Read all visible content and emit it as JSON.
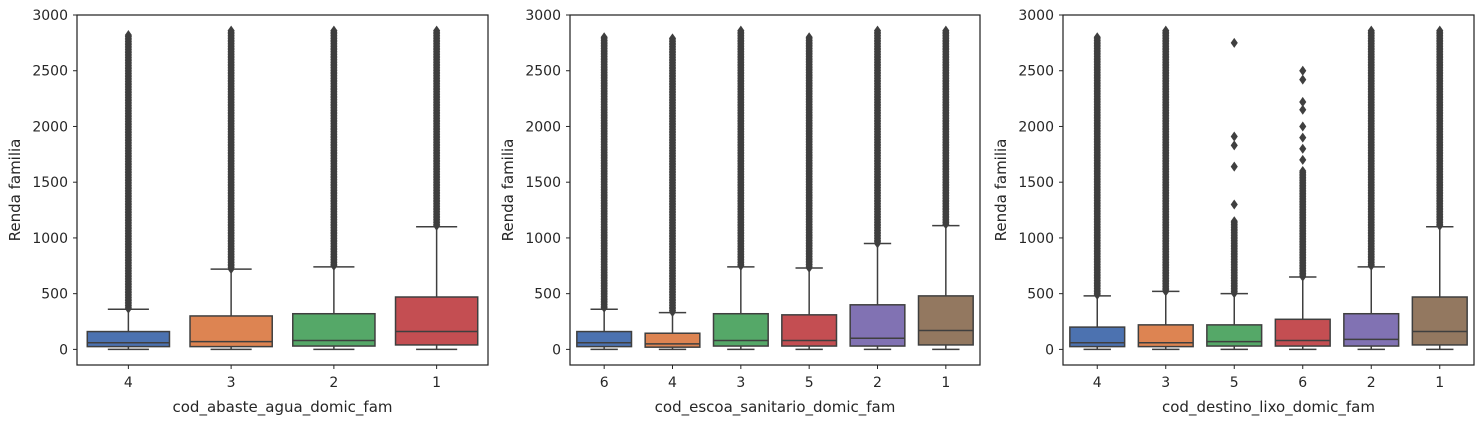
{
  "chart_data": [
    {
      "type": "box",
      "xlabel": "cod_abaste_agua_domic_fam",
      "ylabel": "Renda familia",
      "ylim": [
        -140,
        3000
      ],
      "yticks": [
        0,
        500,
        1000,
        1500,
        2000,
        2500,
        3000
      ],
      "grid": false,
      "categories": [
        "4",
        "3",
        "2",
        "1"
      ],
      "boxes": [
        {
          "label": "4",
          "color": "#4c72b0",
          "min": 0,
          "q1": 25,
          "median": 60,
          "q3": 160,
          "max": 360,
          "outlier_range": [
            360,
            2820
          ]
        },
        {
          "label": "3",
          "color": "#dd8452",
          "min": 0,
          "q1": 25,
          "median": 70,
          "q3": 300,
          "max": 720,
          "outlier_range": [
            720,
            2860
          ]
        },
        {
          "label": "2",
          "color": "#55a868",
          "min": 0,
          "q1": 30,
          "median": 80,
          "q3": 320,
          "max": 740,
          "outlier_range": [
            740,
            2860
          ]
        },
        {
          "label": "1",
          "color": "#c44e52",
          "min": 0,
          "q1": 40,
          "median": 160,
          "q3": 470,
          "max": 1100,
          "outlier_range": [
            1100,
            2860
          ]
        }
      ]
    },
    {
      "type": "box",
      "xlabel": "cod_escoa_sanitario_domic_fam",
      "ylabel": "Renda familia",
      "ylim": [
        -140,
        3000
      ],
      "yticks": [
        0,
        500,
        1000,
        1500,
        2000,
        2500,
        3000
      ],
      "grid": false,
      "categories": [
        "6",
        "4",
        "3",
        "5",
        "2",
        "1"
      ],
      "boxes": [
        {
          "label": "6",
          "color": "#4c72b0",
          "min": 0,
          "q1": 25,
          "median": 60,
          "q3": 160,
          "max": 360,
          "outlier_range": [
            360,
            2800
          ]
        },
        {
          "label": "4",
          "color": "#dd8452",
          "min": 0,
          "q1": 20,
          "median": 50,
          "q3": 145,
          "max": 330,
          "outlier_range": [
            330,
            2790
          ]
        },
        {
          "label": "3",
          "color": "#55a868",
          "min": 0,
          "q1": 30,
          "median": 80,
          "q3": 320,
          "max": 740,
          "outlier_range": [
            740,
            2860
          ]
        },
        {
          "label": "5",
          "color": "#c44e52",
          "min": 0,
          "q1": 30,
          "median": 80,
          "q3": 310,
          "max": 730,
          "outlier_range": [
            730,
            2800
          ]
        },
        {
          "label": "2",
          "color": "#8172b3",
          "min": 0,
          "q1": 30,
          "median": 100,
          "q3": 400,
          "max": 950,
          "outlier_range": [
            950,
            2860
          ]
        },
        {
          "label": "1",
          "color": "#937860",
          "min": 0,
          "q1": 40,
          "median": 170,
          "q3": 480,
          "max": 1110,
          "outlier_range": [
            1110,
            2860
          ]
        }
      ]
    },
    {
      "type": "box",
      "xlabel": "cod_destino_lixo_domic_fam",
      "ylabel": "Renda familia",
      "ylim": [
        -140,
        3000
      ],
      "yticks": [
        0,
        500,
        1000,
        1500,
        2000,
        2500,
        3000
      ],
      "grid": false,
      "categories": [
        "4",
        "3",
        "5",
        "6",
        "2",
        "1"
      ],
      "boxes": [
        {
          "label": "4",
          "color": "#4c72b0",
          "min": 0,
          "q1": 25,
          "median": 60,
          "q3": 200,
          "max": 480,
          "outlier_range": [
            480,
            2800
          ]
        },
        {
          "label": "3",
          "color": "#dd8452",
          "min": 0,
          "q1": 25,
          "median": 60,
          "q3": 220,
          "max": 520,
          "outlier_range": [
            520,
            2860
          ]
        },
        {
          "label": "5",
          "color": "#55a868",
          "min": 0,
          "q1": 30,
          "median": 70,
          "q3": 220,
          "max": 500,
          "outlier_range": [
            500,
            1150
          ],
          "extra_outliers": [
            1300,
            1640,
            1830,
            1910,
            2750
          ]
        },
        {
          "label": "6",
          "color": "#c44e52",
          "min": 0,
          "q1": 30,
          "median": 80,
          "q3": 270,
          "max": 650,
          "outlier_range": [
            650,
            1600
          ],
          "extra_outliers": [
            1700,
            1800,
            1900,
            2000,
            2150,
            2220,
            2420,
            2500
          ]
        },
        {
          "label": "2",
          "color": "#8172b3",
          "min": 0,
          "q1": 30,
          "median": 90,
          "q3": 320,
          "max": 740,
          "outlier_range": [
            740,
            2860
          ]
        },
        {
          "label": "1",
          "color": "#937860",
          "min": 0,
          "q1": 40,
          "median": 160,
          "q3": 470,
          "max": 1100,
          "outlier_range": [
            1100,
            2860
          ]
        }
      ]
    }
  ]
}
